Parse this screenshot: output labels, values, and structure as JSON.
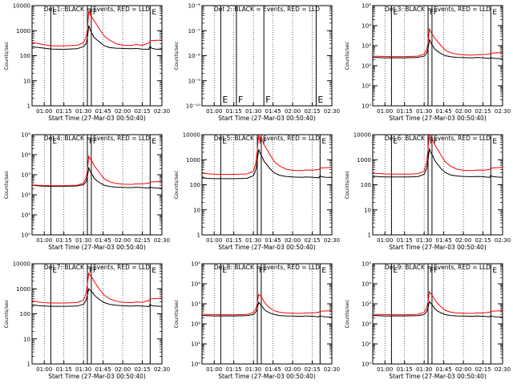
{
  "time_axis": {
    "tick_labels": [
      "01:00",
      "01:15",
      "01:30",
      "01:45",
      "02:00",
      "02:15",
      "02:30"
    ],
    "xlabel": "Start Time (27-Mar-03 00:50:40)",
    "ylabel": "Counts/sec",
    "range_min": [
      50.67,
      150
    ]
  },
  "series_colors": {
    "events": "#000000",
    "lld": "#ff0000"
  },
  "chart_data": [
    {
      "type": "line",
      "title": "Det 1: BLACK = Events, RED = LLD",
      "yscale": "log",
      "ylim": [
        1,
        10000
      ],
      "yticks": [
        1,
        10,
        100,
        1000,
        10000
      ],
      "yticklabels": [
        "1",
        "10",
        "100",
        "1000",
        "10000"
      ],
      "markers": [
        {
          "t": 65,
          "label": "E"
        },
        {
          "t": 93,
          "label": "F"
        },
        {
          "t": 96,
          "label": "F"
        },
        {
          "t": 141,
          "label": "E"
        }
      ],
      "x": [
        51,
        55,
        60,
        66,
        75,
        85,
        90,
        92,
        93,
        94,
        95,
        96,
        97,
        98,
        100,
        103,
        106,
        110,
        115,
        120,
        125,
        128,
        130,
        135,
        140,
        141,
        142,
        145,
        150
      ],
      "series": [
        {
          "name": "Events",
          "values": [
            230,
            215,
            200,
            185,
            180,
            190,
            230,
            300,
            500,
            1600,
            1150,
            850,
            700,
            550,
            440,
            330,
            250,
            210,
            200,
            195,
            190,
            190,
            195,
            185,
            180,
            240,
            200,
            185,
            180
          ]
        },
        {
          "name": "LLD",
          "values": [
            340,
            310,
            275,
            245,
            245,
            260,
            330,
            550,
            1100,
            6000,
            4500,
            3600,
            3200,
            2500,
            1800,
            1000,
            600,
            420,
            300,
            260,
            255,
            260,
            280,
            260,
            320,
            380,
            400,
            410,
            420
          ]
        }
      ]
    },
    {
      "type": "line",
      "title": "Det 2: BLACK = Events, RED = LLD",
      "yscale": "log",
      "ylim": [
        1e-10,
        1e-06
      ],
      "yticks": [
        1e-10,
        1e-09,
        1e-08,
        1e-07,
        1e-06
      ],
      "yticklabels": [
        "10⁻¹⁰",
        "10⁻⁹",
        "10⁻⁸",
        "10⁻⁷",
        "10⁻⁶"
      ],
      "markers": [
        {
          "t": 65,
          "label": "E"
        },
        {
          "t": 77,
          "label": "F"
        },
        {
          "t": 98,
          "label": "F"
        },
        {
          "t": 138,
          "label": "E"
        }
      ],
      "x": [],
      "series": []
    },
    {
      "type": "line",
      "title": "Det 3: BLACK = Events, RED = LLD",
      "yscale": "log",
      "ylim": [
        1,
        100000
      ],
      "yticks": [
        1,
        10,
        100,
        1000,
        10000,
        100000
      ],
      "yticklabels": [
        "10⁰",
        "10¹",
        "10²",
        "10³",
        "10⁴",
        "10⁵"
      ],
      "markers": [
        {
          "t": 65,
          "label": "E"
        },
        {
          "t": 93,
          "label": "F"
        },
        {
          "t": 96,
          "label": "F"
        },
        {
          "t": 141,
          "label": "E"
        }
      ],
      "x": [
        51,
        55,
        60,
        66,
        75,
        85,
        90,
        92,
        93,
        94,
        95,
        96,
        97,
        98,
        100,
        103,
        106,
        110,
        115,
        120,
        125,
        128,
        130,
        135,
        140,
        141,
        142,
        145,
        150
      ],
      "series": [
        {
          "name": "Events",
          "values": [
            260,
            255,
            250,
            250,
            250,
            260,
            300,
            420,
            700,
            2000,
            1500,
            1100,
            900,
            700,
            540,
            400,
            320,
            280,
            260,
            255,
            250,
            250,
            260,
            250,
            230,
            260,
            240,
            230,
            230
          ]
        },
        {
          "name": "LLD",
          "values": [
            300,
            295,
            290,
            285,
            285,
            300,
            380,
            650,
            1400,
            7000,
            5000,
            3800,
            3200,
            2400,
            1700,
            1000,
            600,
            450,
            380,
            350,
            340,
            345,
            360,
            360,
            380,
            420,
            430,
            440,
            450
          ]
        }
      ]
    },
    {
      "type": "line",
      "title": "Det 4: BLACK = Events, RED = LLD",
      "yscale": "log",
      "ylim": [
        1,
        100000
      ],
      "yticks": [
        1,
        10,
        100,
        1000,
        10000,
        100000
      ],
      "yticklabels": [
        "10⁰",
        "10¹",
        "10²",
        "10³",
        "10⁴",
        "10⁵"
      ],
      "markers": [
        {
          "t": 65,
          "label": "E"
        },
        {
          "t": 93,
          "label": "F"
        },
        {
          "t": 96,
          "label": "F"
        },
        {
          "t": 141,
          "label": "E"
        }
      ],
      "x": [
        51,
        55,
        60,
        66,
        75,
        85,
        90,
        92,
        93,
        94,
        95,
        96,
        97,
        98,
        100,
        103,
        106,
        110,
        115,
        120,
        125,
        128,
        130,
        135,
        140,
        141,
        142,
        145,
        150
      ],
      "series": [
        {
          "name": "Events",
          "values": [
            300,
            280,
            270,
            265,
            265,
            275,
            320,
            450,
            800,
            2200,
            1600,
            1200,
            950,
            700,
            520,
            380,
            300,
            260,
            240,
            235,
            230,
            230,
            240,
            230,
            215,
            250,
            230,
            220,
            210
          ]
        },
        {
          "name": "LLD",
          "values": [
            310,
            300,
            290,
            285,
            285,
            300,
            380,
            700,
            1600,
            8500,
            6500,
            5200,
            4200,
            3000,
            2000,
            1100,
            620,
            450,
            370,
            340,
            330,
            335,
            350,
            350,
            380,
            420,
            440,
            450,
            460
          ]
        }
      ]
    },
    {
      "type": "line",
      "title": "Det 5: BLACK = Events, RED = LLD",
      "yscale": "log",
      "ylim": [
        1,
        10000
      ],
      "yticks": [
        1,
        10,
        100,
        1000,
        10000
      ],
      "yticklabels": [
        "1",
        "10",
        "100",
        "1000",
        "10000"
      ],
      "markers": [
        {
          "t": 65,
          "label": "E"
        },
        {
          "t": 93,
          "label": "F"
        },
        {
          "t": 96,
          "label": "F"
        },
        {
          "t": 141,
          "label": "E"
        }
      ],
      "x": [
        51,
        55,
        60,
        66,
        75,
        85,
        90,
        92,
        93,
        94,
        95,
        96,
        97,
        98,
        100,
        103,
        106,
        110,
        115,
        120,
        125,
        128,
        130,
        135,
        140,
        141,
        142,
        145,
        150
      ],
      "series": [
        {
          "name": "Events",
          "values": [
            190,
            180,
            175,
            175,
            175,
            180,
            230,
            420,
            1000,
            2600,
            1900,
            1500,
            1200,
            900,
            650,
            420,
            300,
            240,
            215,
            205,
            200,
            200,
            205,
            200,
            190,
            230,
            210,
            200,
            195
          ]
        },
        {
          "name": "LLD",
          "values": [
            290,
            275,
            265,
            260,
            260,
            270,
            340,
            800,
            2500,
            9500,
            8000,
            6800,
            5500,
            4000,
            2700,
            1500,
            850,
            560,
            420,
            380,
            370,
            370,
            390,
            380,
            410,
            450,
            470,
            480,
            490
          ]
        }
      ]
    },
    {
      "type": "line",
      "title": "Det 6: BLACK = Events, RED = LLD",
      "yscale": "log",
      "ylim": [
        1,
        10000
      ],
      "yticks": [
        1,
        10,
        100,
        1000,
        10000
      ],
      "yticklabels": [
        "1",
        "10",
        "100",
        "1000",
        "10000"
      ],
      "markers": [
        {
          "t": 65,
          "label": "E"
        },
        {
          "t": 93,
          "label": "F"
        },
        {
          "t": 96,
          "label": "F"
        },
        {
          "t": 141,
          "label": "E"
        }
      ],
      "x": [
        51,
        55,
        60,
        66,
        75,
        85,
        90,
        92,
        93,
        94,
        95,
        96,
        97,
        98,
        100,
        103,
        106,
        110,
        115,
        120,
        125,
        128,
        130,
        135,
        140,
        141,
        142,
        145,
        150
      ],
      "series": [
        {
          "name": "Events",
          "values": [
            220,
            210,
            205,
            205,
            205,
            210,
            260,
            450,
            1000,
            2700,
            2000,
            1600,
            1300,
            950,
            680,
            440,
            310,
            250,
            225,
            215,
            210,
            210,
            215,
            210,
            195,
            240,
            215,
            205,
            200
          ]
        },
        {
          "name": "LLD",
          "values": [
            290,
            280,
            270,
            265,
            265,
            275,
            350,
            850,
            2700,
            10000,
            8500,
            7000,
            5600,
            4000,
            2700,
            1500,
            850,
            560,
            420,
            380,
            370,
            370,
            390,
            380,
            410,
            450,
            470,
            480,
            490
          ]
        }
      ]
    },
    {
      "type": "line",
      "title": "Det 7: BLACK = Events, RED = LLD",
      "yscale": "log",
      "ylim": [
        1,
        10000
      ],
      "yticks": [
        1,
        10,
        100,
        1000,
        10000
      ],
      "yticklabels": [
        "1",
        "10",
        "100",
        "1000",
        "10000"
      ],
      "markers": [
        {
          "t": 65,
          "label": "E"
        },
        {
          "t": 93,
          "label": "F"
        },
        {
          "t": 96,
          "label": "F"
        },
        {
          "t": 141,
          "label": "E"
        }
      ],
      "x": [
        51,
        55,
        60,
        66,
        75,
        85,
        90,
        92,
        93,
        94,
        95,
        96,
        97,
        98,
        100,
        103,
        106,
        110,
        115,
        120,
        125,
        128,
        130,
        135,
        140,
        141,
        142,
        145,
        150
      ],
      "series": [
        {
          "name": "Events",
          "values": [
            230,
            215,
            205,
            200,
            200,
            205,
            240,
            350,
            560,
            1000,
            900,
            800,
            700,
            580,
            460,
            350,
            280,
            240,
            220,
            210,
            205,
            205,
            210,
            205,
            195,
            240,
            215,
            205,
            200
          ]
        },
        {
          "name": "LLD",
          "values": [
            330,
            300,
            280,
            270,
            270,
            280,
            350,
            650,
            1500,
            4200,
            3500,
            3000,
            2600,
            2000,
            1400,
            850,
            550,
            400,
            320,
            290,
            280,
            280,
            300,
            290,
            340,
            380,
            400,
            410,
            420
          ]
        }
      ]
    },
    {
      "type": "line",
      "title": "Det 8: BLACK = Events, RED = LLD",
      "yscale": "log",
      "ylim": [
        1,
        100000
      ],
      "yticks": [
        1,
        10,
        100,
        1000,
        10000,
        100000
      ],
      "yticklabels": [
        "10⁰",
        "10¹",
        "10²",
        "10³",
        "10⁴",
        "10⁵"
      ],
      "markers": [
        {
          "t": 65,
          "label": "E"
        },
        {
          "t": 93,
          "label": "F"
        },
        {
          "t": 96,
          "label": "F"
        },
        {
          "t": 141,
          "label": "E"
        }
      ],
      "x": [
        51,
        55,
        60,
        66,
        75,
        85,
        90,
        92,
        93,
        94,
        95,
        96,
        97,
        98,
        100,
        103,
        106,
        110,
        115,
        120,
        125,
        128,
        130,
        135,
        140,
        141,
        142,
        145,
        150
      ],
      "series": [
        {
          "name": "Events",
          "values": [
            260,
            255,
            250,
            250,
            250,
            255,
            290,
            400,
            600,
            1200,
            1000,
            850,
            700,
            550,
            430,
            340,
            290,
            260,
            250,
            245,
            240,
            240,
            250,
            240,
            225,
            255,
            235,
            225,
            220
          ]
        },
        {
          "name": "LLD",
          "values": [
            300,
            295,
            290,
            285,
            285,
            295,
            370,
            600,
            1100,
            3000,
            2600,
            2200,
            1800,
            1300,
            900,
            600,
            450,
            380,
            350,
            340,
            335,
            340,
            350,
            350,
            380,
            420,
            430,
            440,
            450
          ]
        }
      ]
    },
    {
      "type": "line",
      "title": "Det 9: BLACK = Events, RED = LLD",
      "yscale": "log",
      "ylim": [
        1,
        100000
      ],
      "yticks": [
        1,
        10,
        100,
        1000,
        10000,
        100000
      ],
      "yticklabels": [
        "10⁰",
        "10¹",
        "10²",
        "10³",
        "10⁴",
        "10⁵"
      ],
      "markers": [
        {
          "t": 65,
          "label": "E"
        },
        {
          "t": 93,
          "label": "F"
        },
        {
          "t": 96,
          "label": "F"
        },
        {
          "t": 141,
          "label": "E"
        }
      ],
      "x": [
        51,
        55,
        60,
        66,
        75,
        85,
        90,
        92,
        93,
        94,
        95,
        96,
        97,
        98,
        100,
        103,
        106,
        110,
        115,
        120,
        125,
        128,
        130,
        135,
        140,
        141,
        142,
        145,
        150
      ],
      "series": [
        {
          "name": "Events",
          "values": [
            260,
            255,
            250,
            250,
            250,
            255,
            290,
            420,
            650,
            1300,
            1100,
            900,
            750,
            580,
            450,
            350,
            290,
            260,
            250,
            245,
            240,
            240,
            250,
            240,
            225,
            255,
            235,
            225,
            220
          ]
        },
        {
          "name": "LLD",
          "values": [
            300,
            295,
            290,
            285,
            285,
            300,
            380,
            650,
            1300,
            4000,
            3300,
            2700,
            2200,
            1600,
            1100,
            700,
            480,
            390,
            350,
            340,
            335,
            340,
            350,
            350,
            380,
            420,
            430,
            440,
            450
          ]
        }
      ]
    }
  ]
}
